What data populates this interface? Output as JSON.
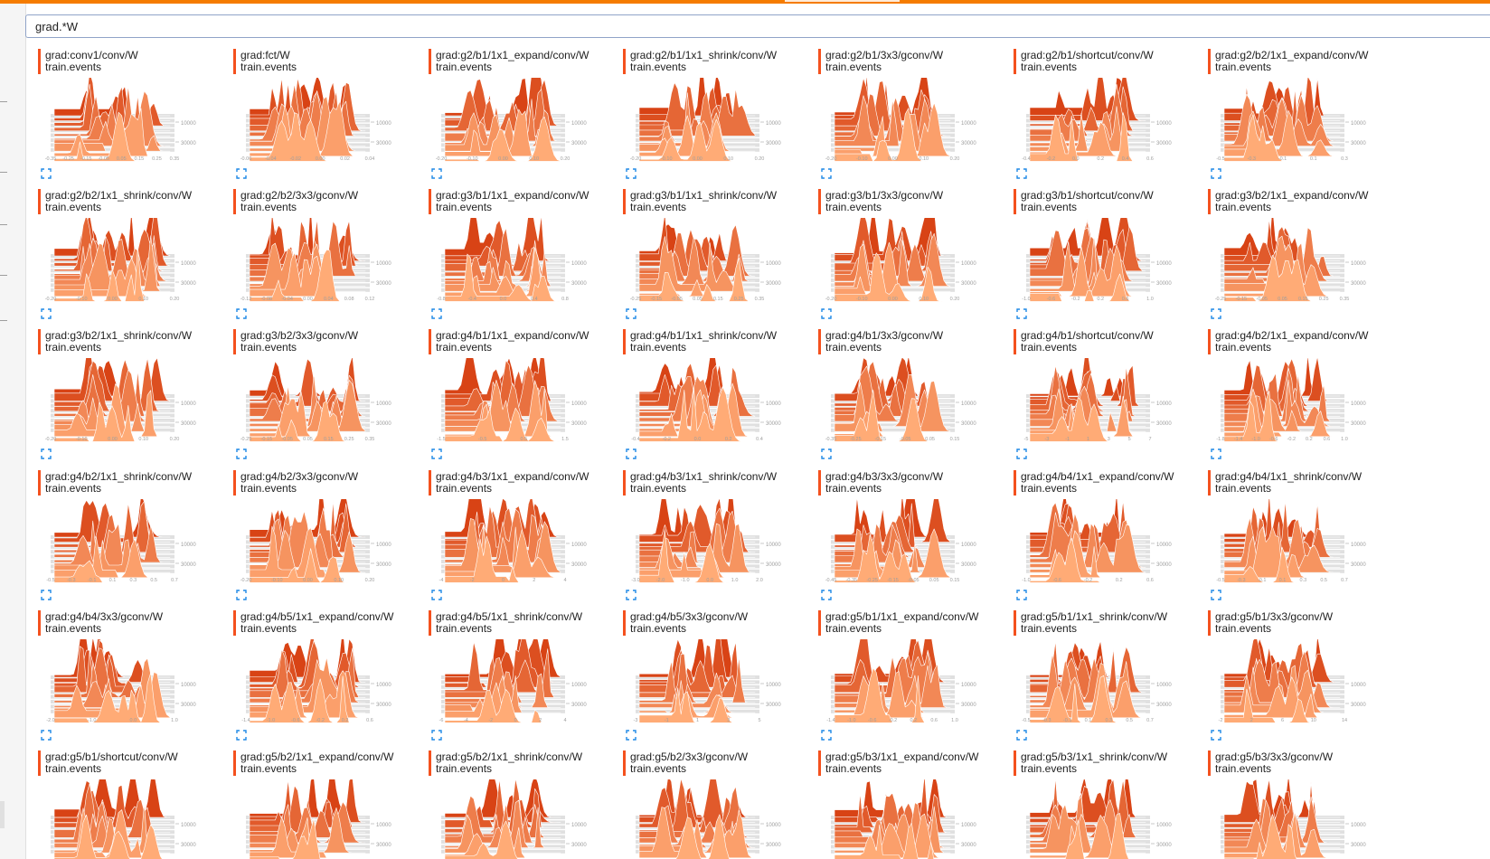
{
  "filter": {
    "value": "grad.*W"
  },
  "colors": {
    "accent": "#f57c00",
    "run": "#f4511e",
    "hist_light": "#ffab76",
    "hist_dark": "#d84315",
    "grid": "#e0e0e0"
  },
  "chart_defaults": {
    "type": "histogram",
    "run": "train.events",
    "y_ticks": [
      "10000",
      "30000"
    ]
  },
  "cards": [
    {
      "title": "grad:conv1/conv/W",
      "run": "train.events",
      "x_ticks": [
        "-0.35",
        "-0.25",
        "-0.15",
        "-0.05",
        "0.05",
        "0.15",
        "0.25",
        "0.35"
      ]
    },
    {
      "title": "grad:fct/W",
      "run": "train.events",
      "x_ticks": [
        "-0.06",
        "-0.04",
        "-0.02",
        "0.00",
        "0.02",
        "0.04"
      ]
    },
    {
      "title": "grad:g2/b1/1x1_expand/conv/W",
      "run": "train.events",
      "x_ticks": [
        "-0.20",
        "-0.10",
        "0.00",
        "0.10",
        "0.20"
      ]
    },
    {
      "title": "grad:g2/b1/1x1_shrink/conv/W",
      "run": "train.events",
      "x_ticks": [
        "-0.20",
        "-0.10",
        "0.00",
        "0.10",
        "0.20"
      ]
    },
    {
      "title": "grad:g2/b1/3x3/gconv/W",
      "run": "train.events",
      "x_ticks": [
        "-0.20",
        "-0.10",
        "0.00",
        "0.10",
        "0.20"
      ]
    },
    {
      "title": "grad:g2/b1/shortcut/conv/W",
      "run": "train.events",
      "x_ticks": [
        "-0.4",
        "-0.2",
        "0.0",
        "0.2",
        "0.4",
        "0.6"
      ]
    },
    {
      "title": "grad:g2/b2/1x1_expand/conv/W",
      "run": "train.events",
      "x_ticks": [
        "-0.5",
        "-0.3",
        "-0.1",
        "0.1",
        "0.3"
      ]
    },
    {
      "title": "grad:g2/b2/1x1_shrink/conv/W",
      "run": "train.events",
      "x_ticks": [
        "-0.20",
        "-0.10",
        "0.00",
        "0.10",
        "0.20"
      ]
    },
    {
      "title": "grad:g2/b2/3x3/gconv/W",
      "run": "train.events",
      "x_ticks": [
        "-0.12",
        "-0.08",
        "-0.04",
        "0.00",
        "0.04",
        "0.08",
        "0.12"
      ]
    },
    {
      "title": "grad:g3/b1/1x1_expand/conv/W",
      "run": "train.events",
      "x_ticks": [
        "-0.8",
        "-0.4",
        "0.0",
        "0.4",
        "0.8"
      ]
    },
    {
      "title": "grad:g3/b1/1x1_shrink/conv/W",
      "run": "train.events",
      "x_ticks": [
        "-0.25",
        "-0.15",
        "-0.05",
        "0.05",
        "0.15",
        "0.25",
        "0.35"
      ]
    },
    {
      "title": "grad:g3/b1/3x3/gconv/W",
      "run": "train.events",
      "x_ticks": [
        "-0.20",
        "-0.10",
        "0.00",
        "0.10",
        "0.20"
      ]
    },
    {
      "title": "grad:g3/b1/shortcut/conv/W",
      "run": "train.events",
      "x_ticks": [
        "-1.0",
        "-0.6",
        "-0.2",
        "0.2",
        "0.6",
        "1.0"
      ]
    },
    {
      "title": "grad:g3/b2/1x1_expand/conv/W",
      "run": "train.events",
      "x_ticks": [
        "-0.25",
        "-0.15",
        "-0.05",
        "0.05",
        "0.15",
        "0.25",
        "0.35"
      ]
    },
    {
      "title": "grad:g3/b2/1x1_shrink/conv/W",
      "run": "train.events",
      "x_ticks": [
        "-0.20",
        "-0.10",
        "0.00",
        "0.10",
        "0.20"
      ]
    },
    {
      "title": "grad:g3/b2/3x3/gconv/W",
      "run": "train.events",
      "x_ticks": [
        "-0.25",
        "-0.15",
        "-0.05",
        "0.05",
        "0.15",
        "0.25",
        "0.35"
      ]
    },
    {
      "title": "grad:g4/b1/1x1_expand/conv/W",
      "run": "train.events",
      "x_ticks": [
        "-1.5",
        "-0.5",
        "0.5",
        "1.5"
      ]
    },
    {
      "title": "grad:g4/b1/1x1_shrink/conv/W",
      "run": "train.events",
      "x_ticks": [
        "-0.4",
        "-0.2",
        "0.0",
        "0.2",
        "0.4"
      ]
    },
    {
      "title": "grad:g4/b1/3x3/gconv/W",
      "run": "train.events",
      "x_ticks": [
        "-0.35",
        "-0.25",
        "-0.15",
        "-0.05",
        "0.05",
        "0.15"
      ]
    },
    {
      "title": "grad:g4/b1/shortcut/conv/W",
      "run": "train.events",
      "x_ticks": [
        "-5",
        "-3",
        "-1",
        "1",
        "3",
        "5",
        "7"
      ]
    },
    {
      "title": "grad:g4/b2/1x1_expand/conv/W",
      "run": "train.events",
      "x_ticks": [
        "-1.8",
        "-1.4",
        "-1.0",
        "-0.6",
        "-0.2",
        "0.2",
        "0.6",
        "1.0"
      ]
    },
    {
      "title": "grad:g4/b2/1x1_shrink/conv/W",
      "run": "train.events",
      "x_ticks": [
        "-0.5",
        "-0.3",
        "-0.1",
        "0.1",
        "0.3",
        "0.5",
        "0.7"
      ]
    },
    {
      "title": "grad:g4/b2/3x3/gconv/W",
      "run": "train.events",
      "x_ticks": [
        "-0.20",
        "-0.10",
        "0.00",
        "0.10",
        "0.20"
      ]
    },
    {
      "title": "grad:g4/b3/1x1_expand/conv/W",
      "run": "train.events",
      "x_ticks": [
        "-4",
        "-2",
        "0",
        "2",
        "4"
      ]
    },
    {
      "title": "grad:g4/b3/1x1_shrink/conv/W",
      "run": "train.events",
      "x_ticks": [
        "-3.0",
        "-2.0",
        "-1.0",
        "0.0",
        "1.0",
        "2.0"
      ]
    },
    {
      "title": "grad:g4/b3/3x3/gconv/W",
      "run": "train.events",
      "x_ticks": [
        "-0.45",
        "-0.35",
        "-0.25",
        "-0.15",
        "-0.05",
        "0.05",
        "0.15"
      ]
    },
    {
      "title": "grad:g4/b4/1x1_expand/conv/W",
      "run": "train.events",
      "x_ticks": [
        "-1.0",
        "-0.6",
        "-0.2",
        "0.2",
        "0.6"
      ]
    },
    {
      "title": "grad:g4/b4/1x1_shrink/conv/W",
      "run": "train.events",
      "x_ticks": [
        "-0.5",
        "-0.3",
        "-0.1",
        "0.1",
        "0.3",
        "0.5",
        "0.7"
      ]
    },
    {
      "title": "grad:g4/b4/3x3/gconv/W",
      "run": "train.events",
      "x_ticks": [
        "-2.0",
        "-1.0",
        "0.0",
        "1.0"
      ]
    },
    {
      "title": "grad:g4/b5/1x1_expand/conv/W",
      "run": "train.events",
      "x_ticks": [
        "-1.4",
        "-1.0",
        "-0.6",
        "-0.2",
        "0.2",
        "0.6"
      ]
    },
    {
      "title": "grad:g4/b5/1x1_shrink/conv/W",
      "run": "train.events",
      "x_ticks": [
        "-6",
        "-4",
        "-2",
        "0",
        "2",
        "4"
      ]
    },
    {
      "title": "grad:g4/b5/3x3/gconv/W",
      "run": "train.events",
      "x_ticks": [
        "-3",
        "-1",
        "1",
        "3",
        "5"
      ]
    },
    {
      "title": "grad:g5/b1/1x1_expand/conv/W",
      "run": "train.events",
      "x_ticks": [
        "-1.4",
        "-1.0",
        "-0.6",
        "-0.2",
        "0.2",
        "0.6",
        "1.0"
      ]
    },
    {
      "title": "grad:g5/b1/1x1_shrink/conv/W",
      "run": "train.events",
      "x_ticks": [
        "-0.5",
        "-0.3",
        "-0.1",
        "0.1",
        "0.3",
        "0.5",
        "0.7"
      ]
    },
    {
      "title": "grad:g5/b1/3x3/gconv/W",
      "run": "train.events",
      "x_ticks": [
        "-2",
        "2",
        "6",
        "10",
        "14"
      ]
    },
    {
      "title": "grad:g5/b1/shortcut/conv/W",
      "run": "train.events",
      "x_ticks": []
    },
    {
      "title": "grad:g5/b2/1x1_expand/conv/W",
      "run": "train.events",
      "x_ticks": []
    },
    {
      "title": "grad:g5/b2/1x1_shrink/conv/W",
      "run": "train.events",
      "x_ticks": []
    },
    {
      "title": "grad:g5/b2/3x3/gconv/W",
      "run": "train.events",
      "x_ticks": []
    },
    {
      "title": "grad:g5/b3/1x1_expand/conv/W",
      "run": "train.events",
      "x_ticks": []
    },
    {
      "title": "grad:g5/b3/1x1_shrink/conv/W",
      "run": "train.events",
      "x_ticks": []
    },
    {
      "title": "grad:g5/b3/3x3/gconv/W",
      "run": "train.events",
      "x_ticks": []
    }
  ]
}
